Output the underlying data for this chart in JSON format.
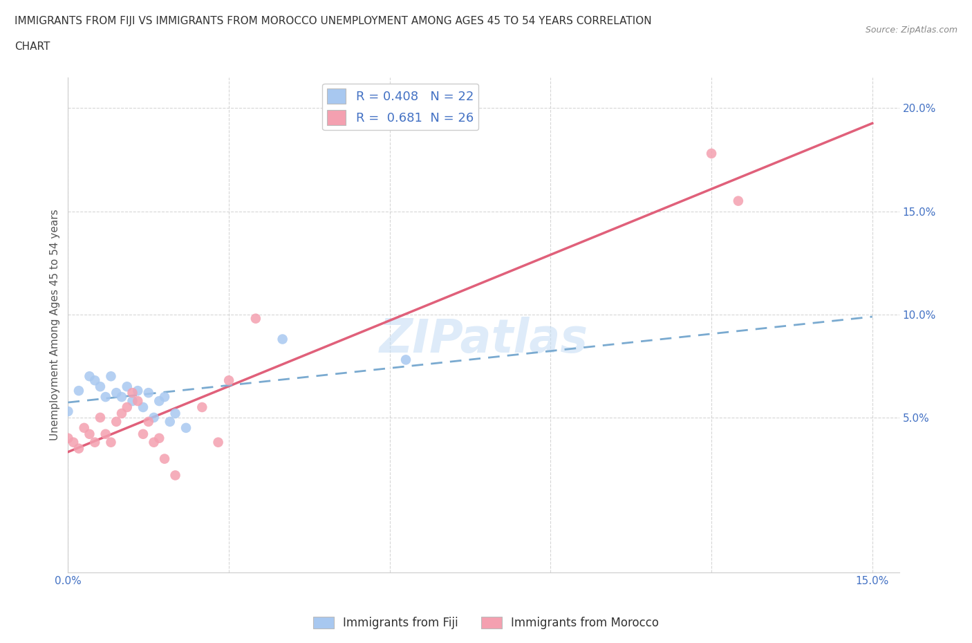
{
  "title_line1": "IMMIGRANTS FROM FIJI VS IMMIGRANTS FROM MOROCCO UNEMPLOYMENT AMONG AGES 45 TO 54 YEARS CORRELATION",
  "title_line2": "CHART",
  "source": "Source: ZipAtlas.com",
  "ylabel": "Unemployment Among Ages 45 to 54 years",
  "fiji_R": 0.408,
  "fiji_N": 22,
  "morocco_R": 0.681,
  "morocco_N": 26,
  "fiji_color": "#a8c8f0",
  "morocco_color": "#f4a0b0",
  "fiji_line_color": "#7aaad0",
  "morocco_line_color": "#e0607a",
  "xlim": [
    0.0,
    0.155
  ],
  "ylim": [
    -0.025,
    0.215
  ],
  "yticks": [
    0.05,
    0.1,
    0.15,
    0.2
  ],
  "xticks": [
    0.0,
    0.03,
    0.06,
    0.09,
    0.12,
    0.15
  ],
  "ytick_labels": [
    "5.0%",
    "10.0%",
    "15.0%",
    "20.0%"
  ],
  "xtick_labels": [
    "0.0%",
    "",
    "",
    "",
    "",
    "15.0%"
  ],
  "fiji_scatter_x": [
    0.0,
    0.002,
    0.004,
    0.005,
    0.006,
    0.007,
    0.008,
    0.009,
    0.01,
    0.011,
    0.012,
    0.013,
    0.014,
    0.015,
    0.016,
    0.017,
    0.018,
    0.019,
    0.02,
    0.022,
    0.04,
    0.063
  ],
  "fiji_scatter_y": [
    0.053,
    0.063,
    0.07,
    0.068,
    0.065,
    0.06,
    0.07,
    0.062,
    0.06,
    0.065,
    0.058,
    0.063,
    0.055,
    0.062,
    0.05,
    0.058,
    0.06,
    0.048,
    0.052,
    0.045,
    0.088,
    0.078
  ],
  "morocco_scatter_x": [
    0.0,
    0.001,
    0.002,
    0.003,
    0.004,
    0.005,
    0.006,
    0.007,
    0.008,
    0.009,
    0.01,
    0.011,
    0.012,
    0.013,
    0.014,
    0.015,
    0.016,
    0.017,
    0.018,
    0.02,
    0.025,
    0.028,
    0.03,
    0.035,
    0.12,
    0.125
  ],
  "morocco_scatter_y": [
    0.04,
    0.038,
    0.035,
    0.045,
    0.042,
    0.038,
    0.05,
    0.042,
    0.038,
    0.048,
    0.052,
    0.055,
    0.062,
    0.058,
    0.042,
    0.048,
    0.038,
    0.04,
    0.03,
    0.022,
    0.055,
    0.038,
    0.068,
    0.098,
    0.178,
    0.155
  ],
  "background_color": "#ffffff",
  "grid_color": "#cccccc",
  "axis_label_color": "#4472c4",
  "fiji_line_intercept": 0.042,
  "fiji_line_slope": 0.6,
  "morocco_line_intercept": 0.036,
  "morocco_line_slope": 0.76
}
